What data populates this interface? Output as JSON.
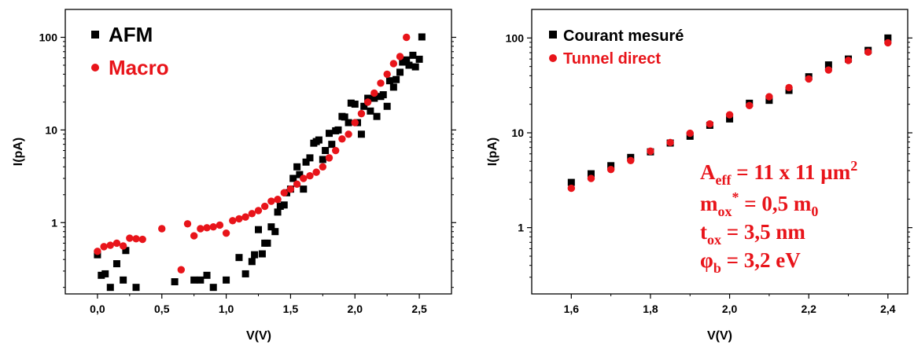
{
  "colors": {
    "black_series": "#000000",
    "red_series": "#e8141a",
    "axis": "#000000"
  },
  "chart_data": [
    {
      "type": "scatter",
      "xlabel": "V(V)",
      "ylabel": "I(pA)",
      "xlim": [
        -0.25,
        2.75
      ],
      "ylim": [
        0.17,
        200
      ],
      "yscale": "log",
      "xticks": [
        0.0,
        0.5,
        1.0,
        1.5,
        2.0,
        2.5
      ],
      "xtick_labels": [
        "0,0",
        "0,5",
        "1,0",
        "1,5",
        "2,0",
        "2,5"
      ],
      "yticks": [
        1,
        10,
        100
      ],
      "ytick_labels": [
        "1",
        "10",
        "100"
      ],
      "grid": false,
      "legend": "top-left",
      "series": [
        {
          "name": "AFM",
          "marker": "square",
          "color": "#000000",
          "x": [
            0.0,
            0.03,
            0.06,
            0.1,
            0.15,
            0.2,
            0.22,
            0.3,
            0.4,
            0.6,
            0.75,
            0.8,
            0.85,
            0.9,
            1.0,
            1.1,
            1.15,
            1.2,
            1.22,
            1.25,
            1.28,
            1.3,
            1.32,
            1.35,
            1.38,
            1.4,
            1.42,
            1.45,
            1.47,
            1.5,
            1.52,
            1.55,
            1.57,
            1.6,
            1.62,
            1.65,
            1.68,
            1.7,
            1.72,
            1.75,
            1.77,
            1.8,
            1.82,
            1.85,
            1.87,
            1.9,
            1.92,
            1.95,
            1.97,
            2.0,
            2.02,
            2.05,
            2.07,
            2.1,
            2.12,
            2.15,
            2.17,
            2.2,
            2.22,
            2.25,
            2.27,
            2.3,
            2.32,
            2.35,
            2.37,
            2.4,
            2.42,
            2.45,
            2.47,
            2.5,
            2.52
          ],
          "y": [
            0.45,
            0.27,
            0.28,
            0.2,
            0.36,
            0.24,
            0.5,
            0.2,
            0.16,
            0.23,
            0.24,
            0.24,
            0.27,
            0.2,
            0.24,
            0.42,
            0.28,
            0.38,
            0.45,
            0.84,
            0.46,
            0.6,
            0.6,
            0.9,
            0.8,
            1.3,
            1.5,
            1.55,
            2.1,
            2.3,
            3.0,
            4.0,
            3.3,
            2.3,
            4.5,
            5.0,
            7.2,
            7.5,
            7.8,
            4.8,
            6.0,
            9.2,
            7.0,
            9.8,
            10.0,
            14.0,
            13.8,
            12.0,
            19.5,
            19.0,
            12.0,
            9.0,
            18.0,
            22.0,
            16.0,
            22.0,
            14.0,
            23.0,
            24.0,
            18.0,
            34.0,
            29.0,
            35.0,
            42.0,
            54.0,
            57.0,
            50.0,
            64.0,
            48.0,
            58.0,
            101.0
          ]
        },
        {
          "name": "Macro",
          "marker": "circle",
          "color": "#e8141a",
          "x": [
            0.0,
            0.05,
            0.1,
            0.15,
            0.2,
            0.25,
            0.3,
            0.35,
            0.5,
            0.65,
            0.7,
            0.75,
            0.8,
            0.85,
            0.9,
            0.95,
            1.0,
            1.05,
            1.1,
            1.15,
            1.2,
            1.25,
            1.3,
            1.35,
            1.4,
            1.45,
            1.5,
            1.55,
            1.6,
            1.65,
            1.7,
            1.75,
            1.8,
            1.85,
            1.9,
            1.95,
            2.0,
            2.05,
            2.1,
            2.15,
            2.2,
            2.25,
            2.3,
            2.35,
            2.4
          ],
          "y": [
            0.49,
            0.55,
            0.57,
            0.6,
            0.56,
            0.68,
            0.67,
            0.66,
            0.86,
            0.31,
            0.97,
            0.72,
            0.86,
            0.88,
            0.9,
            0.94,
            0.77,
            1.05,
            1.1,
            1.15,
            1.25,
            1.35,
            1.5,
            1.7,
            1.78,
            2.1,
            2.3,
            2.6,
            3.0,
            3.2,
            3.5,
            4.0,
            5.0,
            6.0,
            8.0,
            9.0,
            12.0,
            15.0,
            20.0,
            25.0,
            32.0,
            40.0,
            52.0,
            62.0,
            100.0
          ]
        }
      ]
    },
    {
      "type": "scatter",
      "xlabel": "V(V)",
      "ylabel": "I(pA)",
      "xlim": [
        1.5,
        2.45
      ],
      "ylim": [
        0.2,
        200
      ],
      "yscale": "log",
      "xticks": [
        1.6,
        1.8,
        2.0,
        2.2,
        2.4
      ],
      "xtick_labels": [
        "1,6",
        "1,8",
        "2,0",
        "2,2",
        "2,4"
      ],
      "yticks": [
        1,
        10,
        100
      ],
      "ytick_labels": [
        "1",
        "10",
        "100"
      ],
      "grid": false,
      "legend": "top-left",
      "series": [
        {
          "name": "Courant mesuré",
          "marker": "square",
          "color": "#000000",
          "x": [
            1.6,
            1.65,
            1.7,
            1.75,
            1.8,
            1.85,
            1.9,
            1.95,
            2.0,
            2.05,
            2.1,
            2.15,
            2.2,
            2.25,
            2.3,
            2.35,
            2.4
          ],
          "y": [
            3.0,
            3.7,
            4.5,
            5.5,
            6.3,
            7.8,
            9.2,
            12.0,
            14.0,
            20.5,
            22.0,
            28.0,
            39.0,
            52.0,
            60.0,
            74.0,
            100.0
          ]
        },
        {
          "name": "Tunnel direct",
          "marker": "circle",
          "color": "#e8141a",
          "x": [
            1.6,
            1.65,
            1.7,
            1.75,
            1.8,
            1.85,
            1.9,
            1.95,
            2.0,
            2.05,
            2.1,
            2.15,
            2.2,
            2.25,
            2.3,
            2.35,
            2.4
          ],
          "y": [
            2.6,
            3.3,
            4.1,
            5.1,
            6.4,
            7.9,
            9.9,
            12.4,
            15.5,
            19.4,
            24.0,
            30.0,
            37.0,
            46.0,
            58.0,
            71.0,
            89.0
          ]
        }
      ],
      "annotations": [
        {
          "base": "A",
          "sub": "eff",
          "sup": "2",
          "rest": " = 11 x 11 µm"
        },
        {
          "base": "m",
          "sub": "ox",
          "sup": "*",
          "rest": " = 0,5 m",
          "tail_sub": "0"
        },
        {
          "base": "t",
          "sub": "ox",
          "rest": " = 3,5 nm"
        },
        {
          "base": "φ",
          "sub": "b",
          "rest": " = 3,2 eV"
        }
      ]
    }
  ]
}
